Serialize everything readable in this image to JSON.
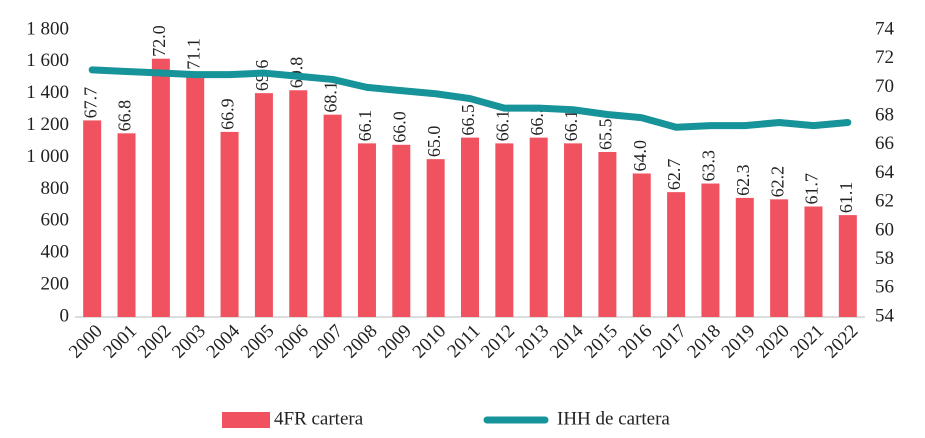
{
  "chart_data": {
    "type": "bar-line",
    "categories": [
      "2000",
      "2001",
      "2002",
      "2003",
      "2004",
      "2005",
      "2006",
      "2007",
      "2008",
      "2009",
      "2010",
      "2011",
      "2012",
      "2013",
      "2014",
      "2015",
      "2016",
      "2017",
      "2018",
      "2019",
      "2020",
      "2021",
      "2022"
    ],
    "series": [
      {
        "name": "4FR cartera",
        "type": "bar",
        "axis": "y2",
        "color": "#f0525f",
        "values": [
          67.7,
          66.8,
          72.0,
          71.1,
          66.9,
          69.6,
          69.8,
          68.1,
          66.1,
          66.0,
          65.0,
          66.5,
          66.1,
          66.5,
          66.1,
          65.5,
          64.0,
          62.7,
          63.3,
          62.3,
          62.2,
          61.7,
          61.1
        ],
        "value_labels": [
          "67.7",
          "66.8",
          "72.0",
          "71.1",
          "66.9",
          "69.6",
          "69.8",
          "68.1",
          "66.1",
          "66.0",
          "65.0",
          "66.5",
          "66.1",
          "66.5",
          "66.1",
          "65.5",
          "64.0",
          "62.7",
          "63.3",
          "62.3",
          "62.2",
          "61.7",
          "61.1"
        ]
      },
      {
        "name": "IHH de cartera",
        "type": "line",
        "axis": "y",
        "color": "#17939a",
        "values": [
          1550,
          1540,
          1530,
          1520,
          1520,
          1530,
          1510,
          1490,
          1440,
          1420,
          1400,
          1370,
          1310,
          1310,
          1300,
          1270,
          1250,
          1190,
          1200,
          1200,
          1220,
          1200,
          1220
        ]
      }
    ],
    "ylim": [
      0,
      1800
    ],
    "yticks": [
      0,
      200,
      400,
      600,
      800,
      {
        "value": 1000,
        "label": "1 000"
      },
      {
        "value": 1200,
        "label": "1 200"
      },
      {
        "value": 1400,
        "label": "1 400"
      },
      {
        "value": 1600,
        "label": "1 600"
      },
      {
        "value": 1800,
        "label": "1 800"
      }
    ],
    "y2lim": [
      54,
      74
    ],
    "y2ticks": [
      54,
      56,
      58,
      60,
      62,
      64,
      66,
      68,
      70,
      72,
      74
    ]
  }
}
